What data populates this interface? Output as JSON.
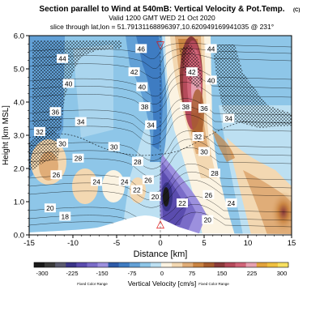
{
  "chart_data": {
    "type": "heatmap",
    "title": "Section parallel to Wind at 540mB: Vertical Velocity & Pot.Temp.",
    "copyright": "(C)",
    "subtitle_valid": "Valid 1200 GMT WED 21 Oct 2020",
    "subtitle_slice": "slice through lat,lon = 51.79131168896397,10.620949169941035 @ 231°",
    "xlabel": "Distance [km]",
    "ylabel": "Height [km MSL]",
    "xlim": [
      -15,
      15
    ],
    "ylim": [
      0,
      6
    ],
    "x_ticks": [
      -15,
      -10,
      -5,
      0,
      5,
      10,
      15
    ],
    "x_tick_labels": [
      "-15",
      "-10",
      "-5",
      "0",
      "5",
      "10",
      "15"
    ],
    "y_ticks": [
      0,
      1,
      2,
      3,
      4,
      5,
      6
    ],
    "y_tick_labels": [
      "0.0",
      "1.0",
      "2.0",
      "3.0",
      "4.0",
      "5.0",
      "6.0"
    ],
    "marker_top": {
      "label": "▽",
      "x": 0,
      "y": 5.75
    },
    "marker_bottom": {
      "label": "△",
      "x": 0,
      "y": 0.35
    },
    "theta_labels": [
      {
        "text": "46",
        "x": -2.2,
        "y": 5.6
      },
      {
        "text": "44",
        "x": -11.2,
        "y": 5.3
      },
      {
        "text": "44",
        "x": 5.8,
        "y": 5.6
      },
      {
        "text": "42",
        "x": -3.0,
        "y": 4.9
      },
      {
        "text": "42",
        "x": 3.6,
        "y": 4.9
      },
      {
        "text": "40",
        "x": -10.5,
        "y": 4.55
      },
      {
        "text": "40",
        "x": -2.1,
        "y": 4.45
      },
      {
        "text": "40",
        "x": 5.8,
        "y": 4.65
      },
      {
        "text": "38",
        "x": -1.8,
        "y": 3.85
      },
      {
        "text": "38",
        "x": 2.9,
        "y": 3.85
      },
      {
        "text": "36",
        "x": -12.0,
        "y": 3.7
      },
      {
        "text": "36",
        "x": 5.0,
        "y": 3.8
      },
      {
        "text": "34",
        "x": -9.1,
        "y": 3.4
      },
      {
        "text": "34",
        "x": -1.1,
        "y": 3.3
      },
      {
        "text": "34",
        "x": 7.8,
        "y": 3.5
      },
      {
        "text": "32",
        "x": -13.8,
        "y": 3.1
      },
      {
        "text": "32",
        "x": 4.3,
        "y": 2.95
      },
      {
        "text": "30",
        "x": -11.2,
        "y": 2.75
      },
      {
        "text": "30",
        "x": -5.3,
        "y": 2.65
      },
      {
        "text": "30",
        "x": 5.0,
        "y": 2.5
      },
      {
        "text": "28",
        "x": -9.4,
        "y": 2.3
      },
      {
        "text": "28",
        "x": -2.6,
        "y": 2.2
      },
      {
        "text": "28",
        "x": 6.2,
        "y": 1.85
      },
      {
        "text": "26",
        "x": -11.9,
        "y": 1.8
      },
      {
        "text": "26",
        "x": -1.4,
        "y": 1.65
      },
      {
        "text": "26",
        "x": 5.5,
        "y": 1.2
      },
      {
        "text": "24",
        "x": -7.3,
        "y": 1.6
      },
      {
        "text": "24",
        "x": -4.1,
        "y": 1.6
      },
      {
        "text": "24",
        "x": 8.1,
        "y": 0.95
      },
      {
        "text": "22",
        "x": -2.7,
        "y": 1.35
      },
      {
        "text": "22",
        "x": 2.5,
        "y": 0.95
      },
      {
        "text": "20",
        "x": -12.6,
        "y": 0.8
      },
      {
        "text": "20",
        "x": -0.6,
        "y": 1.15
      },
      {
        "text": "20",
        "x": 5.4,
        "y": 0.45
      },
      {
        "text": "18",
        "x": -10.9,
        "y": 0.55
      }
    ],
    "colorbar": {
      "label": "Vertical Velocity [cm/s]",
      "range_note_left": "Fixed Color Range",
      "range_note_right": "Fixed Color Range",
      "tick_labels": [
        "-300",
        "-225",
        "-150",
        "-75",
        "0",
        "75",
        "150",
        "225",
        "300"
      ],
      "tick_values": [
        -300,
        -225,
        -150,
        -75,
        0,
        75,
        150,
        225,
        300
      ],
      "colors": [
        "#1a1a1a",
        "#3a3a3a",
        "#5a5a6e",
        "#3a3488",
        "#5a4cae",
        "#7a6cc8",
        "#9c90de",
        "#2e5aa8",
        "#3e7cc2",
        "#62a0d6",
        "#8ec6e8",
        "#bde0f2",
        "#fbf3e2",
        "#f3d8b2",
        "#e0ad78",
        "#c98442",
        "#a65c2e",
        "#8a3a3a",
        "#b44a5a",
        "#d06478",
        "#e6a0b0",
        "#e2a23c",
        "#f0c040",
        "#f8e060"
      ]
    }
  }
}
